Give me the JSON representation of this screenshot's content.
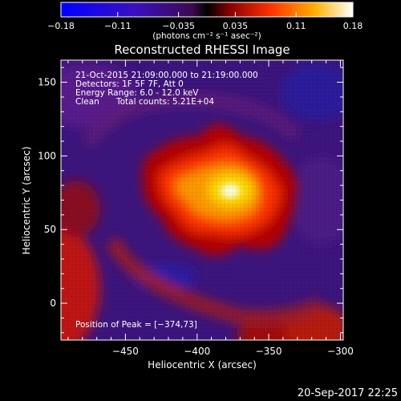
{
  "chart_data": {
    "type": "heatmap",
    "title": "Reconstructed RHESSI Image",
    "xlabel": "Heliocentric X (arcsec)",
    "ylabel": "Heliocentric Y (arcsec)",
    "xlim": [
      -495,
      -298
    ],
    "ylim": [
      -25,
      165
    ],
    "x_ticks": [
      -450,
      -400,
      -350,
      -300
    ],
    "x_tick_labels": [
      "−450",
      "−400",
      "−350",
      "−300"
    ],
    "y_ticks": [
      0,
      50,
      100,
      150
    ],
    "y_tick_labels": [
      "0",
      "50",
      "100",
      "150"
    ],
    "colorbar": {
      "range": [
        -0.18,
        0.18
      ],
      "ticks": [
        -0.18,
        -0.11,
        -0.035,
        0.035,
        0.11,
        0.18
      ],
      "tick_labels": [
        "−0.18",
        "−0.11",
        "−0.035",
        "0.035",
        "0.11",
        "0.18"
      ],
      "units_text": "(photons cm⁻² s⁻¹ asec⁻²)"
    },
    "annotations": {
      "time_range": "21-Oct-2015 21:09:00.000 to 21:19:00.000",
      "detectors": "Detectors: 1F 5F 7F, Att 0",
      "energy": "Energy Range: 6.0 - 12.0 keV",
      "method": "Clean",
      "counts": "Total counts: 5.21E+04",
      "peak": "Position of Peak = [−374,73]"
    },
    "peak": {
      "x": -374,
      "y": 73,
      "value": 0.18
    },
    "grid": false
  },
  "footer": {
    "date": "20-Sep-2017 22:25"
  }
}
